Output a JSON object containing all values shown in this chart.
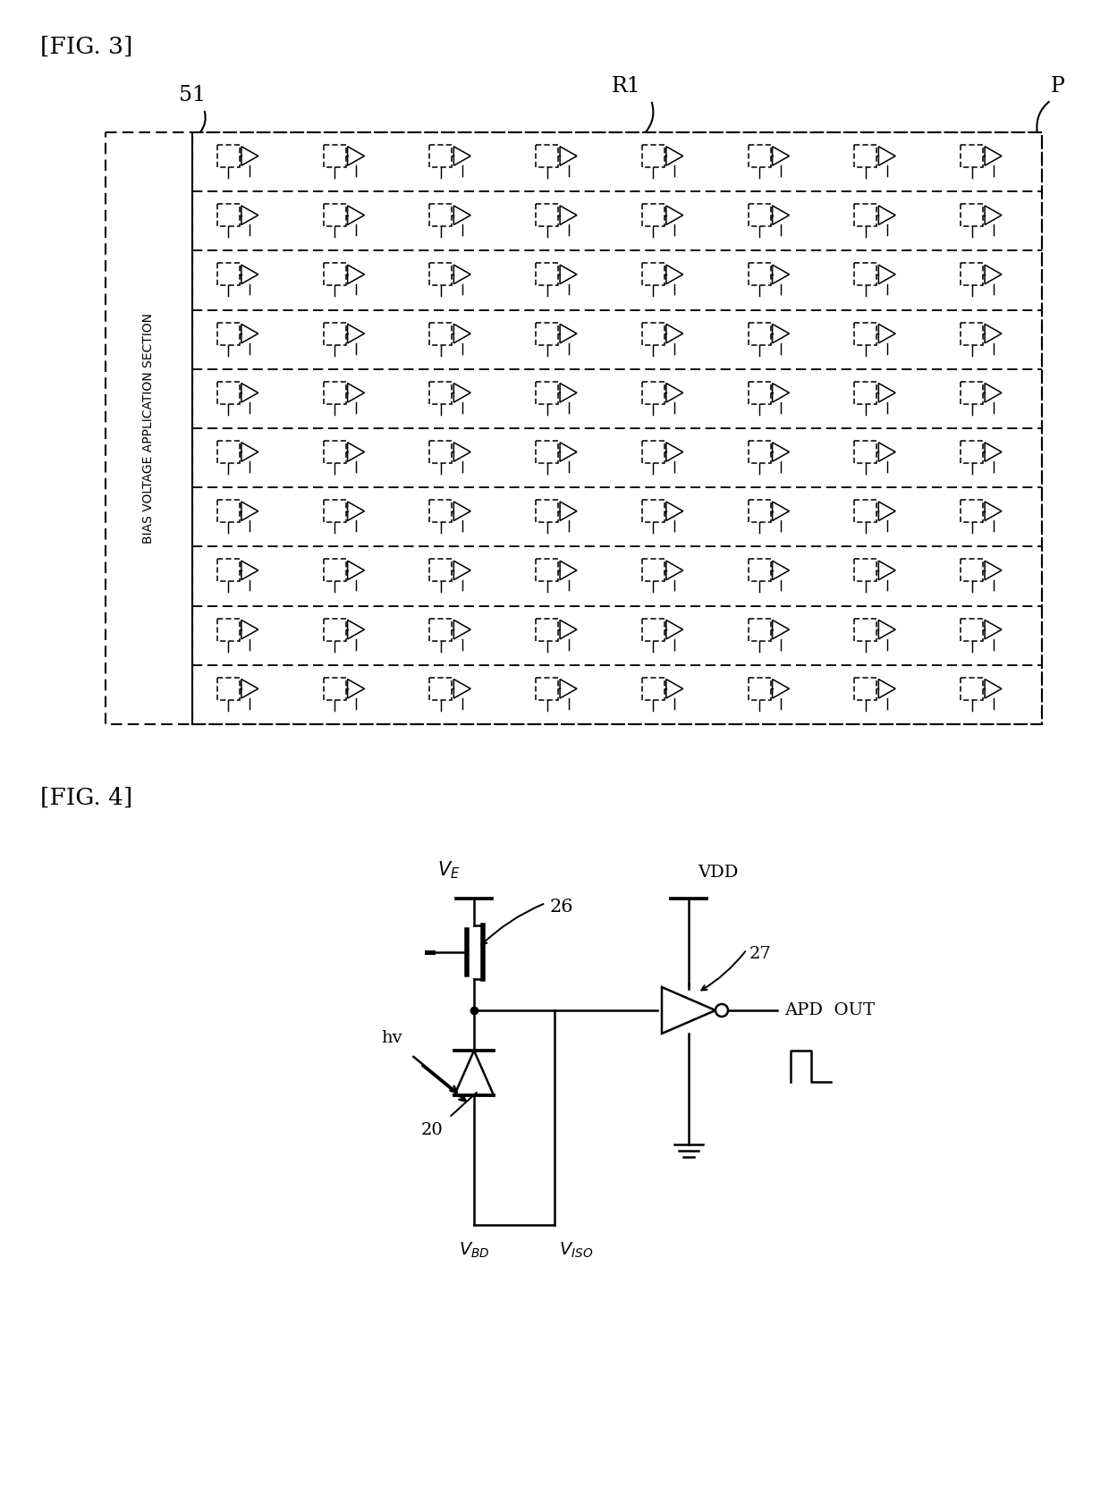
{
  "fig3_label": "[FIG. 3]",
  "fig4_label": "[FIG. 4]",
  "label_51": "51",
  "label_R1": "R1",
  "label_P": "P",
  "label_26": "26",
  "label_27": "27",
  "label_20": "20",
  "label_hv": "hv",
  "label_VE": "V_E",
  "label_VDD": "VDD",
  "label_VBD": "V_{BD}",
  "label_VISO": "V_{ISO}",
  "label_APD_OUT": "APD  OUT",
  "bias_label": "BIAS VOLTAGE APPLICATION SECTION",
  "num_rows": 10,
  "num_cols": 8,
  "bg_color": "#ffffff",
  "line_color": "#000000"
}
